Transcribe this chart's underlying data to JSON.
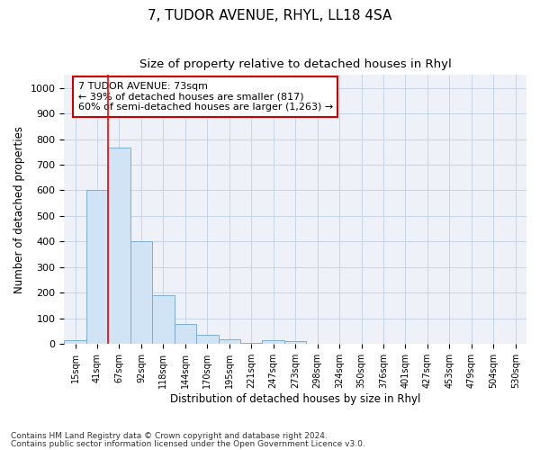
{
  "title": "7, TUDOR AVENUE, RHYL, LL18 4SA",
  "subtitle": "Size of property relative to detached houses in Rhyl",
  "xlabel": "Distribution of detached houses by size in Rhyl",
  "ylabel": "Number of detached properties",
  "categories": [
    "15sqm",
    "41sqm",
    "67sqm",
    "92sqm",
    "118sqm",
    "144sqm",
    "170sqm",
    "195sqm",
    "221sqm",
    "247sqm",
    "273sqm",
    "298sqm",
    "324sqm",
    "350sqm",
    "376sqm",
    "401sqm",
    "427sqm",
    "453sqm",
    "479sqm",
    "504sqm",
    "530sqm"
  ],
  "values": [
    15,
    600,
    765,
    400,
    190,
    78,
    38,
    18,
    3,
    15,
    12,
    0,
    0,
    0,
    0,
    0,
    0,
    0,
    0,
    0,
    0
  ],
  "bar_color": "#d0e4f5",
  "bar_edge_color": "#7bafd4",
  "red_line_x": 2.0,
  "annotation_title": "7 TUDOR AVENUE: 73sqm",
  "annotation_line1": "← 39% of detached houses are smaller (817)",
  "annotation_line2": "60% of semi-detached houses are larger (1,263) →",
  "ylim": [
    0,
    1050
  ],
  "yticks": [
    0,
    100,
    200,
    300,
    400,
    500,
    600,
    700,
    800,
    900,
    1000
  ],
  "footnote1": "Contains HM Land Registry data © Crown copyright and database right 2024.",
  "footnote2": "Contains public sector information licensed under the Open Government Licence v3.0.",
  "background_color": "#ffffff",
  "plot_bg_color": "#eef2f8",
  "grid_color": "#c5d5e8",
  "title_fontsize": 11,
  "subtitle_fontsize": 9.5,
  "annotation_box_color": "#ffffff",
  "annotation_box_edge": "#cc0000"
}
